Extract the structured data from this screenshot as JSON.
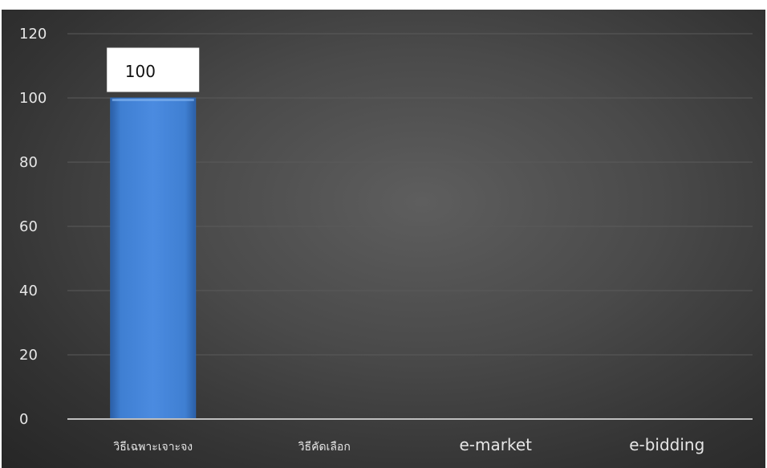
{
  "chart_data": {
    "type": "bar",
    "title": "",
    "xlabel": "",
    "ylabel": "",
    "categories": [
      "วิธีเฉพาะเจาะจง",
      "วิธีคัดเลือก",
      "e-market",
      "e-bidding"
    ],
    "values": [
      100,
      0,
      0,
      0
    ],
    "data_labels": [
      "100",
      "",
      "",
      ""
    ],
    "ylim": [
      0,
      120
    ],
    "yticks": [
      0,
      20,
      40,
      60,
      80,
      100,
      120
    ],
    "grid": true,
    "legend": "none",
    "colors": {
      "bar": "#3f7fd2",
      "background": "#474747",
      "gridline": "#5a5a5a",
      "axis_line": "#bfbfbf",
      "text": "#e6e6e6"
    }
  }
}
